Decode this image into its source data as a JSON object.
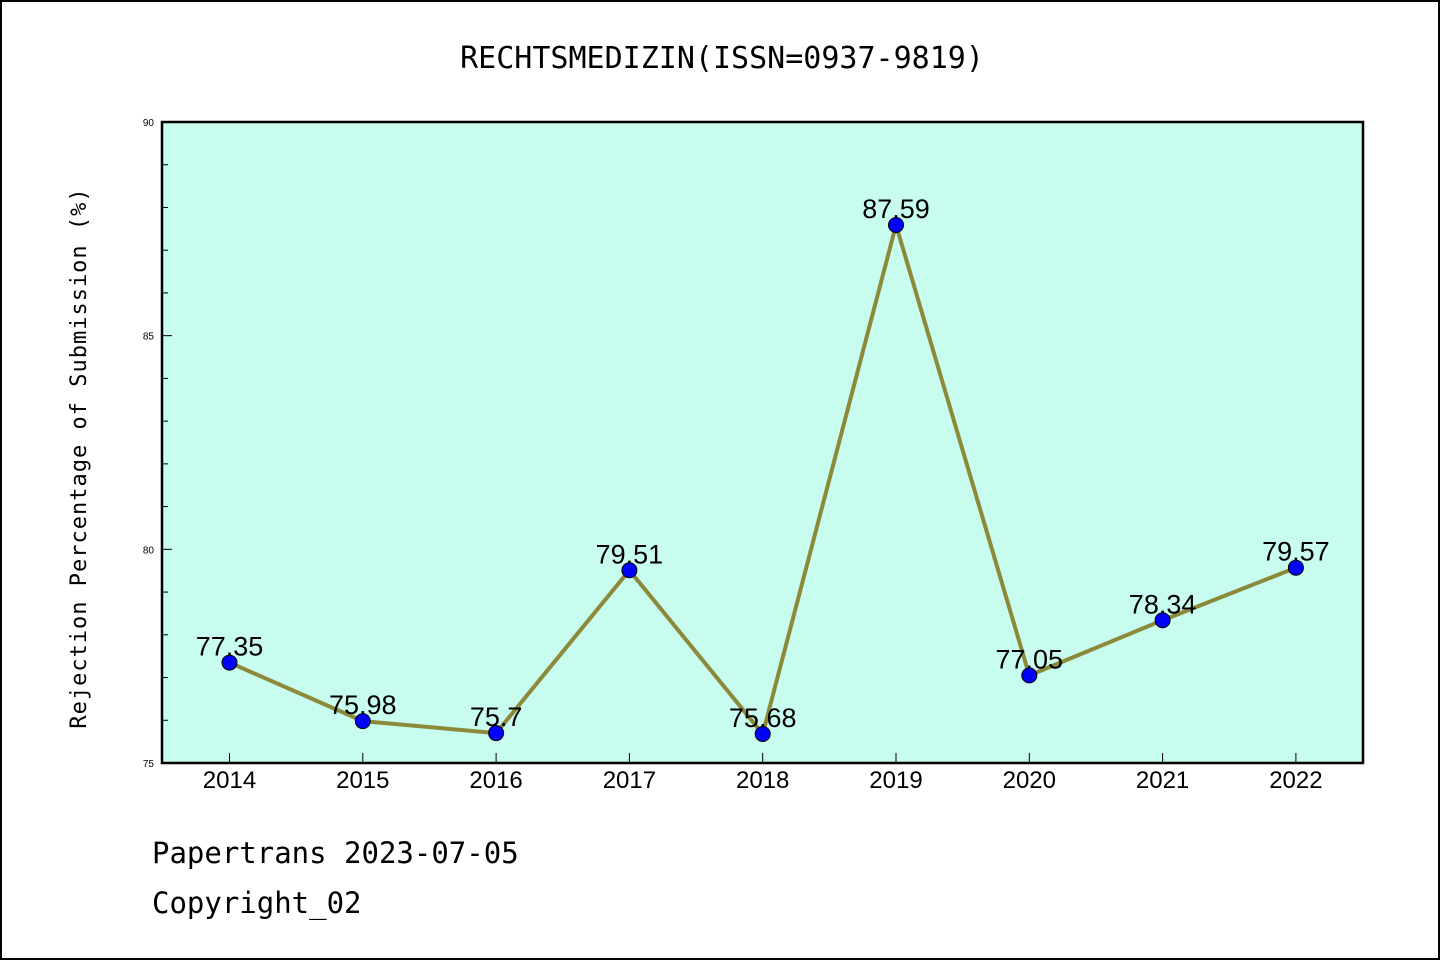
{
  "chart_data": {
    "type": "line",
    "title": "RECHTSMEDIZIN(ISSN=0937-9819)",
    "xlabel": "",
    "ylabel": "Rejection Percentage of Submission (%)",
    "ylim": [
      75,
      90
    ],
    "yticks": [
      75,
      80,
      85,
      90
    ],
    "categories": [
      "2014",
      "2015",
      "2016",
      "2017",
      "2018",
      "2019",
      "2020",
      "2021",
      "2022"
    ],
    "series": [
      {
        "values": [
          77.35,
          75.98,
          75.7,
          79.51,
          75.68,
          87.59,
          77.05,
          78.34,
          79.57
        ],
        "data_labels": [
          "77.35",
          "75.98",
          "75.7",
          "79.51",
          "75.68",
          "87.59",
          "77.05",
          "78.34",
          "79.57"
        ]
      }
    ],
    "grid": false,
    "legend": "none",
    "colors": {
      "plot_background": "#c8fcee",
      "line": "#8b8a3a",
      "marker": "#0000ff"
    }
  },
  "footer": {
    "line1": "Papertrans 2023-07-05",
    "line2": "Copyright_02"
  }
}
